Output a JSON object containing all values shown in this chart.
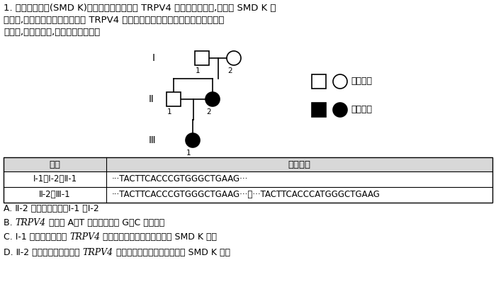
{
  "bg_color": "#ffffff",
  "text_color": "#000000",
  "q_line1": "1. 脊柱发育不良(SMD K)的发生与常染色体上 TRPV4 基因的突变有关,现有一 SMD K 患",
  "q_line2": "者家系,研究人员对该家系各成员 TRPV4 基因所在的测序染色体相关检测点序列进",
  "q_line3": "行检测,结果如下表,下列叙述正确的是",
  "table_header": [
    "成员",
    "测序结果"
  ],
  "table_row1_col1": "Ⅰ-1、Ⅰ-2、Ⅱ-1",
  "table_row1_col2": "···TACTTCACCCGTGGGCTGAAG···",
  "table_row2_col1": "Ⅱ-2、Ⅲ-1",
  "table_row2_col2": "···TACTTCACCCGTGGGCTGAAG···和···TACTTCACCCATGGGCTGAAG",
  "opt_A": "A. Ⅱ-2 的致病基因来自Ⅰ-1 和Ⅰ-2",
  "opt_B_pre": "B. ",
  "opt_B_italic": "TRPV4",
  "opt_B_post": " 基因的 A－T 碱基对替换为 G－C 导致突变",
  "opt_C_pre": "C. Ⅰ-1 产生配子时发生 ",
  "opt_C_italic": "TRPV4",
  "opt_C_post": " 基因隐性突变可能导致该家系 SMD K 发生",
  "opt_D_pre": "D. Ⅱ-2 早期胚胎细胞中发生 ",
  "opt_D_italic": "TRPV4",
  "opt_D_post": " 基因显性突变可能导致该家系 SMD K 发生",
  "legend_normal": "正常男女",
  "legend_affected": "患病男女",
  "gen_labels": [
    "Ⅰ",
    "Ⅱ",
    "Ⅲ"
  ]
}
